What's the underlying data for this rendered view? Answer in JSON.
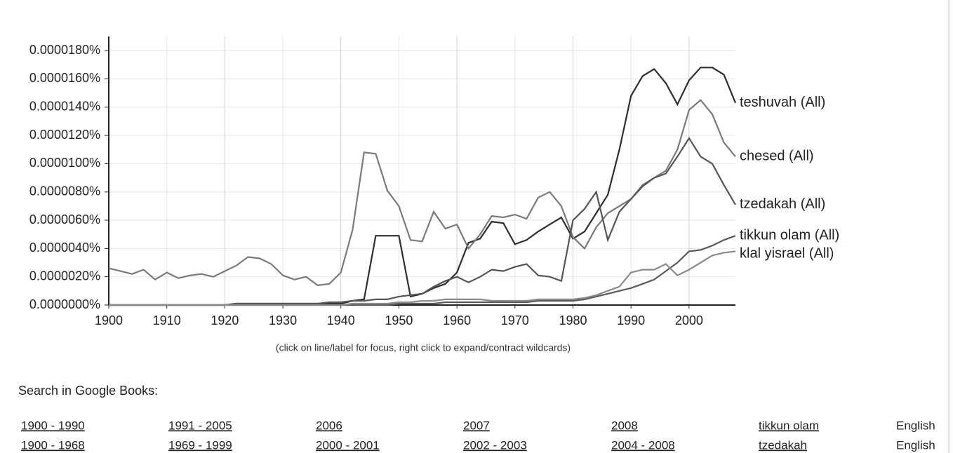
{
  "chart_data": {
    "type": "line",
    "x": [
      1900,
      1902,
      1904,
      1906,
      1908,
      1910,
      1912,
      1914,
      1916,
      1918,
      1920,
      1922,
      1924,
      1926,
      1928,
      1930,
      1932,
      1934,
      1936,
      1938,
      1940,
      1942,
      1944,
      1946,
      1948,
      1950,
      1952,
      1954,
      1956,
      1958,
      1960,
      1962,
      1964,
      1966,
      1968,
      1970,
      1972,
      1974,
      1976,
      1978,
      1980,
      1982,
      1984,
      1986,
      1988,
      1990,
      1992,
      1994,
      1996,
      1998,
      2000,
      2002,
      2004,
      2006,
      2008
    ],
    "series": [
      {
        "name": "teshuvah (All)",
        "color": "#2e2e2e",
        "values": [
          0,
          0,
          0,
          0,
          0,
          0,
          0,
          0,
          0,
          0,
          0,
          1e-07,
          1e-07,
          1e-07,
          1e-07,
          1e-07,
          1e-07,
          1e-07,
          1e-07,
          1e-07,
          1e-07,
          3e-07,
          4e-07,
          4.9e-06,
          4.9e-06,
          4.9e-06,
          6e-07,
          8e-07,
          1.2e-06,
          1.5e-06,
          2.3e-06,
          4.4e-06,
          4.7e-06,
          5.9e-06,
          5.8e-06,
          4.3e-06,
          4.6e-06,
          5.2e-06,
          5.7e-06,
          6.2e-06,
          4.7e-06,
          5.2e-06,
          6.5e-06,
          7.8e-06,
          1.1e-05,
          1.48e-05,
          1.62e-05,
          1.67e-05,
          1.57e-05,
          1.42e-05,
          1.59e-05,
          1.68e-05,
          1.68e-05,
          1.63e-05,
          1.43e-05
        ]
      },
      {
        "name": "chesed (All)",
        "color": "#7a7a7a",
        "values": [
          2.6e-06,
          2.4e-06,
          2.2e-06,
          2.5e-06,
          1.8e-06,
          2.3e-06,
          1.9e-06,
          2.1e-06,
          2.2e-06,
          2e-06,
          2.4e-06,
          2.8e-06,
          3.4e-06,
          3.3e-06,
          2.9e-06,
          2.1e-06,
          1.8e-06,
          2e-06,
          1.4e-06,
          1.5e-06,
          2.3e-06,
          5.3e-06,
          1.08e-05,
          1.07e-05,
          8.1e-06,
          7e-06,
          4.6e-06,
          4.5e-06,
          6.6e-06,
          5.4e-06,
          5.7e-06,
          4e-06,
          5e-06,
          6.3e-06,
          6.2e-06,
          6.4e-06,
          6.1e-06,
          7.6e-06,
          8e-06,
          7e-06,
          4.8e-06,
          4e-06,
          5.5e-06,
          6.5e-06,
          7e-06,
          7.5e-06,
          8.5e-06,
          9e-06,
          9.5e-06,
          1.1e-05,
          1.38e-05,
          1.45e-05,
          1.35e-05,
          1.15e-05,
          1.05e-05
        ]
      },
      {
        "name": "tzedakah (All)",
        "color": "#555555",
        "values": [
          0,
          0,
          0,
          0,
          0,
          0,
          0,
          0,
          0,
          0,
          0,
          1e-07,
          1e-07,
          1e-07,
          1e-07,
          1e-07,
          1e-07,
          1e-07,
          1e-07,
          2e-07,
          2e-07,
          3e-07,
          3e-07,
          4e-07,
          4e-07,
          6e-07,
          7e-07,
          8e-07,
          1.3e-06,
          1.7e-06,
          2e-06,
          1.6e-06,
          2e-06,
          2.5e-06,
          2.4e-06,
          2.7e-06,
          2.9e-06,
          2.1e-06,
          2e-06,
          1.7e-06,
          6e-06,
          6.8e-06,
          8e-06,
          4.6e-06,
          6.6e-06,
          7.5e-06,
          8.4e-06,
          9e-06,
          9.3e-06,
          1.05e-05,
          1.18e-05,
          1.05e-05,
          1e-05,
          8.5e-06,
          7.1e-06
        ]
      },
      {
        "name": "tikkun olam (All)",
        "color": "#5a5a5a",
        "values": [
          0,
          0,
          0,
          0,
          0,
          0,
          0,
          0,
          0,
          0,
          0,
          0,
          0,
          0,
          0,
          0,
          0,
          0,
          0,
          0,
          0,
          0,
          0,
          0,
          0,
          1e-07,
          1e-07,
          1e-07,
          1e-07,
          2e-07,
          2e-07,
          2e-07,
          2e-07,
          2e-07,
          2e-07,
          2e-07,
          2e-07,
          3e-07,
          3e-07,
          3e-07,
          3e-07,
          4e-07,
          6e-07,
          8e-07,
          1e-06,
          1.2e-06,
          1.5e-06,
          1.8e-06,
          2.4e-06,
          3e-06,
          3.8e-06,
          3.9e-06,
          4.2e-06,
          4.6e-06,
          4.9e-06
        ]
      },
      {
        "name": "klal yisrael (All)",
        "color": "#8a8a8a",
        "values": [
          0,
          0,
          0,
          0,
          0,
          0,
          0,
          0,
          0,
          0,
          0,
          0,
          0,
          0,
          0,
          0,
          0,
          0,
          0,
          0,
          0,
          1e-07,
          1e-07,
          1e-07,
          1e-07,
          2e-07,
          2e-07,
          3e-07,
          3e-07,
          4e-07,
          4e-07,
          4e-07,
          4e-07,
          3e-07,
          3e-07,
          3e-07,
          3e-07,
          4e-07,
          4e-07,
          4e-07,
          4e-07,
          5e-07,
          7e-07,
          1e-06,
          1.3e-06,
          2.3e-06,
          2.5e-06,
          2.5e-06,
          2.9e-06,
          2.1e-06,
          2.5e-06,
          3e-06,
          3.5e-06,
          3.7e-06,
          3.8e-06
        ]
      }
    ],
    "xlim": [
      1900,
      2008
    ],
    "xticks": [
      1900,
      1910,
      1920,
      1930,
      1940,
      1950,
      1960,
      1970,
      1980,
      1990,
      2000
    ],
    "ylim": [
      0,
      1.9e-05
    ],
    "yticks": [
      {
        "value": 0,
        "label": "0.0000000%"
      },
      {
        "value": 2e-06,
        "label": "0.0000020%"
      },
      {
        "value": 4e-06,
        "label": "0.0000040%"
      },
      {
        "value": 6e-06,
        "label": "0.0000060%"
      },
      {
        "value": 8e-06,
        "label": "0.0000080%"
      },
      {
        "value": 1e-05,
        "label": "0.0000100%"
      },
      {
        "value": 1.2e-05,
        "label": "0.0000120%"
      },
      {
        "value": 1.4e-05,
        "label": "0.0000140%"
      },
      {
        "value": 1.6e-05,
        "label": "0.0000160%"
      },
      {
        "value": 1.8e-05,
        "label": "0.0000180%"
      }
    ],
    "grid": true
  },
  "caption": "(click on line/label for focus, right click to expand/contract wildcards)",
  "search": {
    "title": "Search in Google Books:",
    "rows": [
      [
        "1900 - 1990",
        "1991 - 2005",
        "2006",
        "2007",
        "2008",
        "tikkun olam",
        "English"
      ],
      [
        "1900 - 1968",
        "1969 - 1999",
        "2000 - 2001",
        "2002 - 2003",
        "2004 - 2008",
        "tzedakah",
        "English"
      ]
    ]
  }
}
